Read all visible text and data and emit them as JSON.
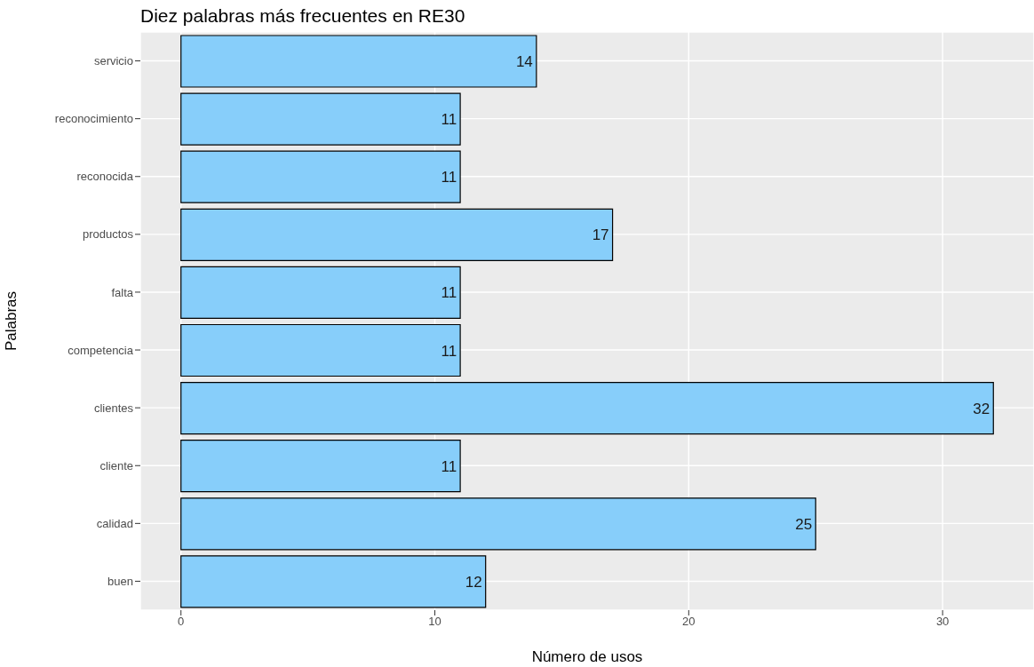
{
  "chart_data": {
    "type": "bar",
    "orientation": "horizontal",
    "title": "Diez palabras más frecuentes en RE30",
    "xlabel": "Número de usos",
    "ylabel": "Palabras",
    "categories": [
      "servicio",
      "reconocimiento",
      "reconocida",
      "productos",
      "falta",
      "competencia",
      "clientes",
      "cliente",
      "calidad",
      "buen"
    ],
    "values": [
      14,
      11,
      11,
      17,
      11,
      11,
      32,
      11,
      25,
      12
    ],
    "color": "#87cefa",
    "xlim": [
      -1.6,
      33.6
    ],
    "xticks": [
      0,
      10,
      20,
      30
    ],
    "grid": true,
    "data_labels": true
  }
}
